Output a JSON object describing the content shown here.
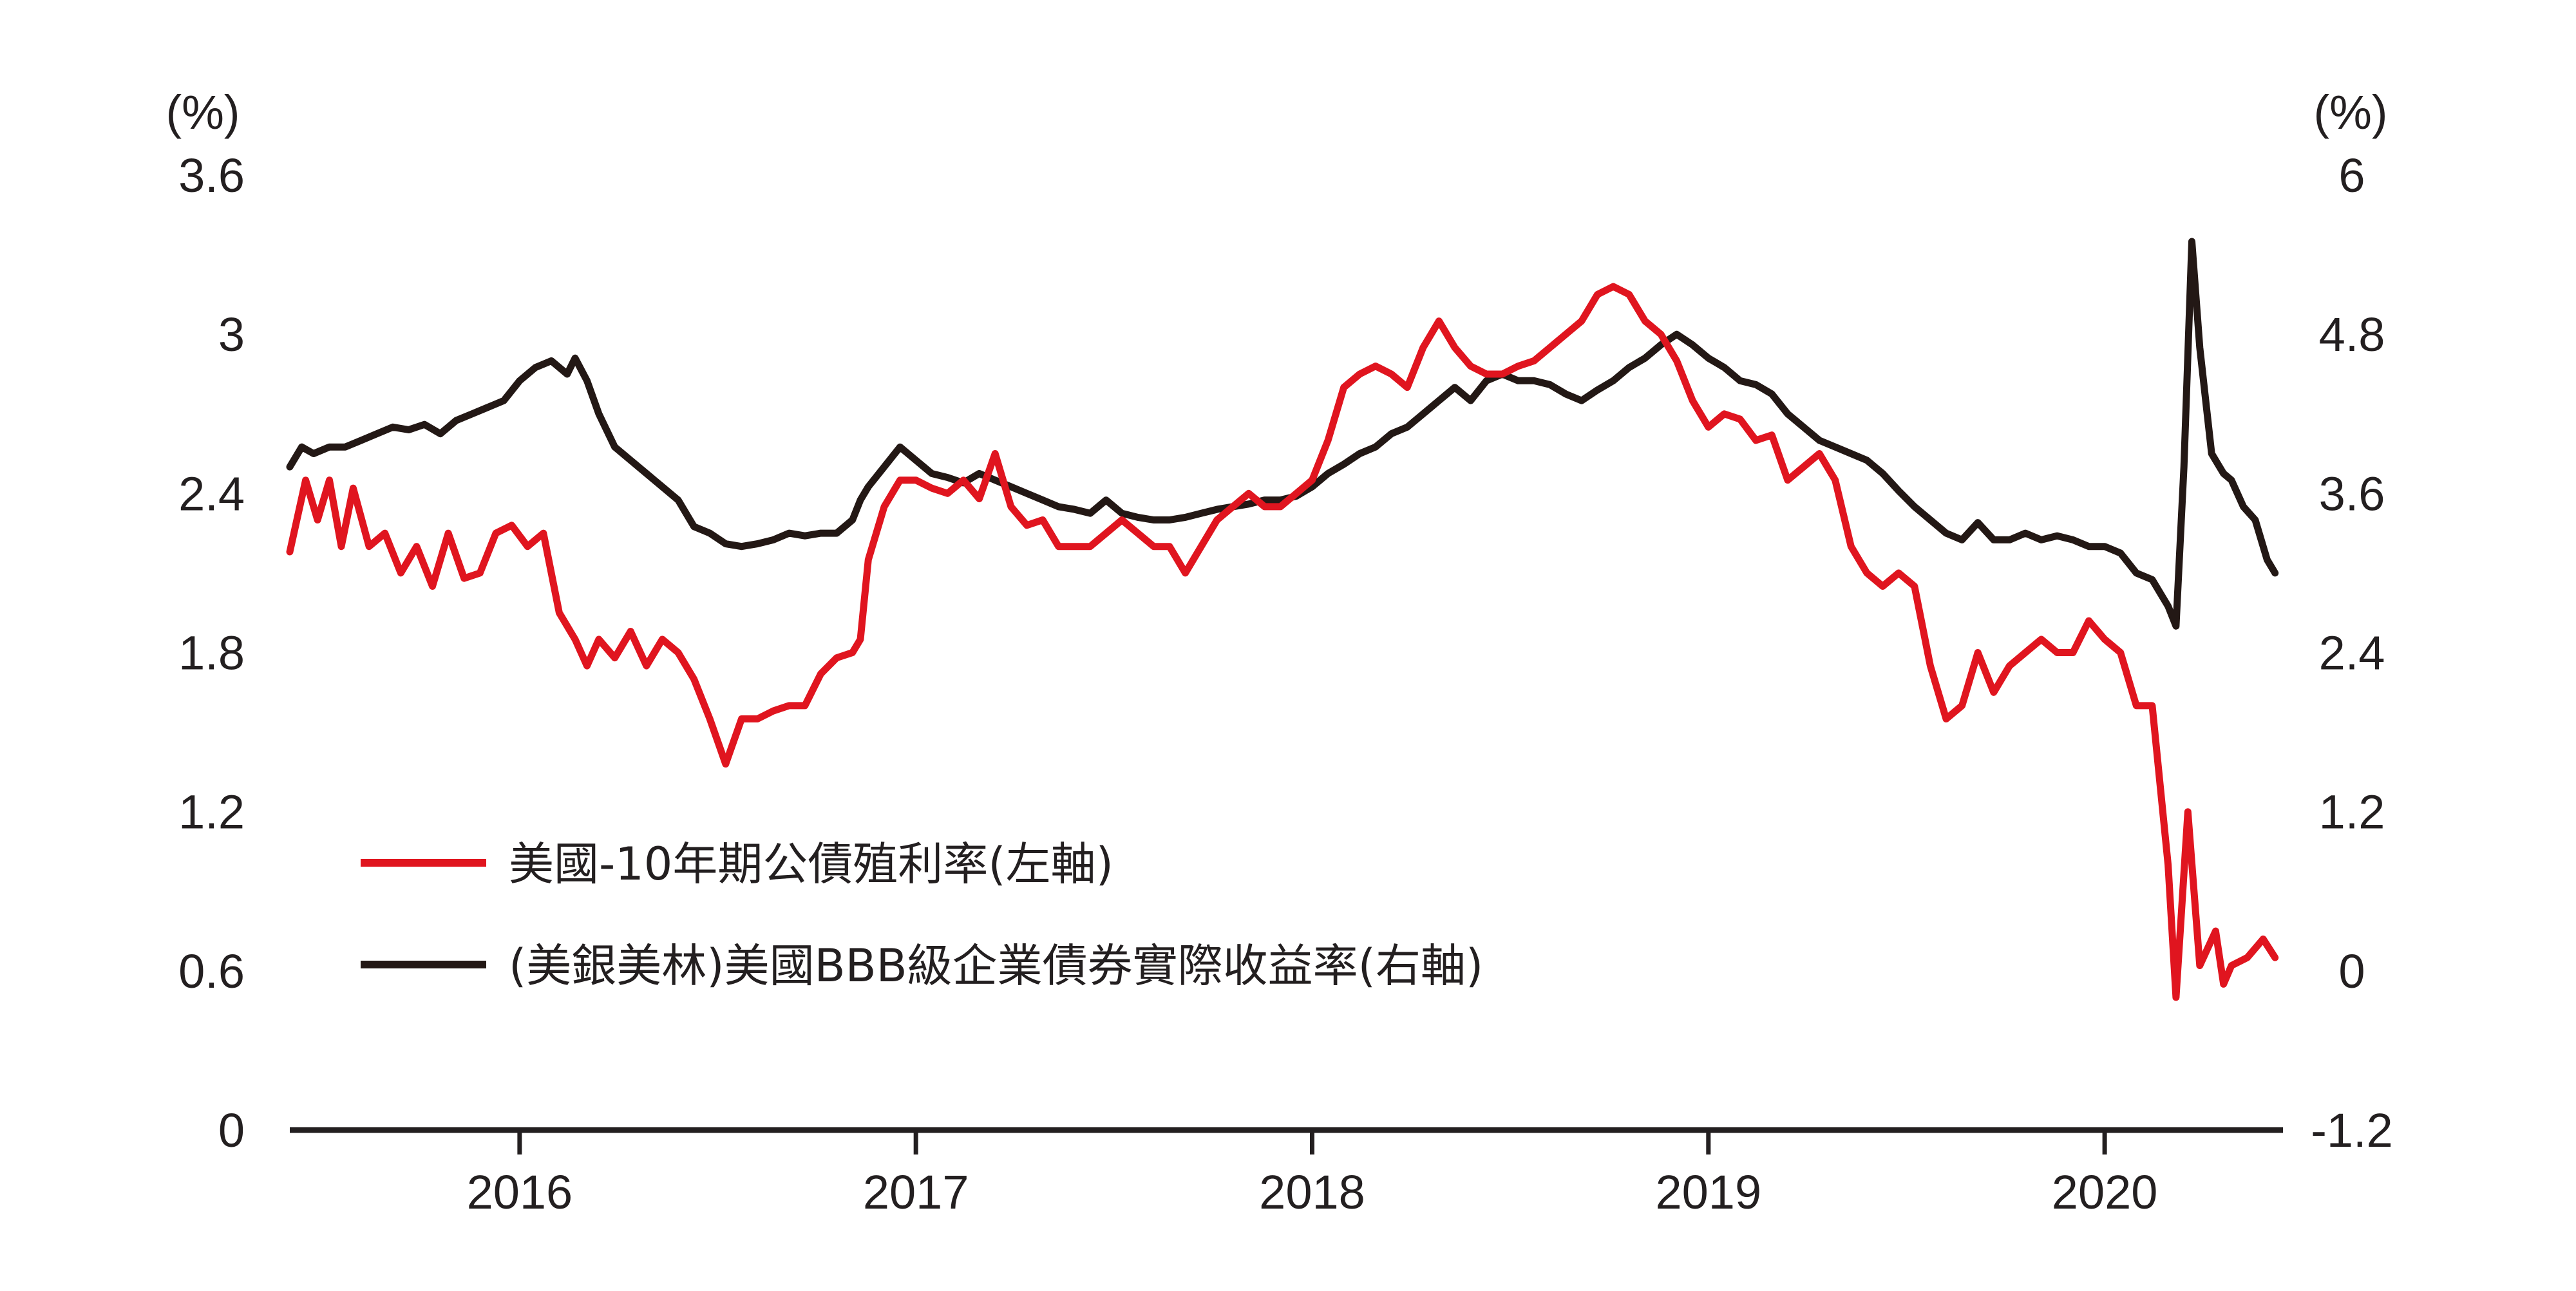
{
  "chart_data": {
    "type": "line",
    "left_axis": {
      "unit_label": "(%)",
      "range": [
        0,
        3.6
      ],
      "ticks": [
        0,
        0.6,
        1.2,
        1.8,
        2.4,
        3,
        3.6
      ],
      "tick_labels": [
        "0",
        "0.6",
        "1.2",
        "1.8",
        "2.4",
        "3",
        "3.6"
      ]
    },
    "right_axis": {
      "unit_label": "(%)",
      "range": [
        -1.2,
        6
      ],
      "ticks": [
        -1.2,
        0,
        1.2,
        2.4,
        3.6,
        4.8,
        6
      ],
      "tick_labels": [
        "-1.2",
        "0",
        "1.2",
        "2.4",
        "3.6",
        "4.8",
        "6"
      ]
    },
    "x_axis": {
      "range": [
        2015.42,
        2020.45
      ],
      "ticks": [
        2016,
        2017,
        2018,
        2019,
        2020
      ],
      "tick_labels": [
        "2016",
        "2017",
        "2018",
        "2019",
        "2020"
      ]
    },
    "grid": false,
    "legend_position": "lower-left",
    "series": [
      {
        "name": "美國-10年期公債殖利率(左軸)",
        "color": "#e0151f",
        "axis": "left",
        "points": [
          [
            2015.42,
            2.18
          ],
          [
            2015.46,
            2.45
          ],
          [
            2015.49,
            2.3
          ],
          [
            2015.52,
            2.45
          ],
          [
            2015.55,
            2.2
          ],
          [
            2015.58,
            2.42
          ],
          [
            2015.62,
            2.2
          ],
          [
            2015.66,
            2.25
          ],
          [
            2015.7,
            2.1
          ],
          [
            2015.74,
            2.2
          ],
          [
            2015.78,
            2.05
          ],
          [
            2015.82,
            2.25
          ],
          [
            2015.86,
            2.08
          ],
          [
            2015.9,
            2.1
          ],
          [
            2015.94,
            2.25
          ],
          [
            2015.98,
            2.28
          ],
          [
            2016.02,
            2.2
          ],
          [
            2016.06,
            2.25
          ],
          [
            2016.1,
            1.95
          ],
          [
            2016.14,
            1.85
          ],
          [
            2016.17,
            1.75
          ],
          [
            2016.2,
            1.85
          ],
          [
            2016.24,
            1.78
          ],
          [
            2016.28,
            1.88
          ],
          [
            2016.32,
            1.75
          ],
          [
            2016.36,
            1.85
          ],
          [
            2016.4,
            1.8
          ],
          [
            2016.44,
            1.7
          ],
          [
            2016.48,
            1.55
          ],
          [
            2016.52,
            1.38
          ],
          [
            2016.56,
            1.55
          ],
          [
            2016.6,
            1.55
          ],
          [
            2016.64,
            1.58
          ],
          [
            2016.68,
            1.6
          ],
          [
            2016.72,
            1.6
          ],
          [
            2016.76,
            1.72
          ],
          [
            2016.8,
            1.78
          ],
          [
            2016.84,
            1.8
          ],
          [
            2016.86,
            1.85
          ],
          [
            2016.88,
            2.15
          ],
          [
            2016.92,
            2.35
          ],
          [
            2016.96,
            2.45
          ],
          [
            2017.0,
            2.45
          ],
          [
            2017.04,
            2.42
          ],
          [
            2017.08,
            2.4
          ],
          [
            2017.12,
            2.45
          ],
          [
            2017.16,
            2.38
          ],
          [
            2017.2,
            2.55
          ],
          [
            2017.24,
            2.35
          ],
          [
            2017.28,
            2.28
          ],
          [
            2017.32,
            2.3
          ],
          [
            2017.36,
            2.2
          ],
          [
            2017.4,
            2.2
          ],
          [
            2017.44,
            2.2
          ],
          [
            2017.48,
            2.25
          ],
          [
            2017.52,
            2.3
          ],
          [
            2017.56,
            2.25
          ],
          [
            2017.6,
            2.2
          ],
          [
            2017.64,
            2.2
          ],
          [
            2017.68,
            2.1
          ],
          [
            2017.72,
            2.2
          ],
          [
            2017.76,
            2.3
          ],
          [
            2017.8,
            2.35
          ],
          [
            2017.84,
            2.4
          ],
          [
            2017.88,
            2.35
          ],
          [
            2017.92,
            2.35
          ],
          [
            2017.96,
            2.4
          ],
          [
            2018.0,
            2.45
          ],
          [
            2018.04,
            2.6
          ],
          [
            2018.08,
            2.8
          ],
          [
            2018.12,
            2.85
          ],
          [
            2018.16,
            2.88
          ],
          [
            2018.2,
            2.85
          ],
          [
            2018.24,
            2.8
          ],
          [
            2018.28,
            2.95
          ],
          [
            2018.32,
            3.05
          ],
          [
            2018.36,
            2.95
          ],
          [
            2018.4,
            2.88
          ],
          [
            2018.44,
            2.85
          ],
          [
            2018.48,
            2.85
          ],
          [
            2018.52,
            2.88
          ],
          [
            2018.56,
            2.9
          ],
          [
            2018.6,
            2.95
          ],
          [
            2018.64,
            3.0
          ],
          [
            2018.68,
            3.05
          ],
          [
            2018.72,
            3.15
          ],
          [
            2018.76,
            3.18
          ],
          [
            2018.8,
            3.15
          ],
          [
            2018.84,
            3.05
          ],
          [
            2018.88,
            3.0
          ],
          [
            2018.92,
            2.9
          ],
          [
            2018.96,
            2.75
          ],
          [
            2019.0,
            2.65
          ],
          [
            2019.04,
            2.7
          ],
          [
            2019.08,
            2.68
          ],
          [
            2019.12,
            2.6
          ],
          [
            2019.16,
            2.62
          ],
          [
            2019.2,
            2.45
          ],
          [
            2019.24,
            2.5
          ],
          [
            2019.28,
            2.55
          ],
          [
            2019.32,
            2.45
          ],
          [
            2019.36,
            2.2
          ],
          [
            2019.4,
            2.1
          ],
          [
            2019.44,
            2.05
          ],
          [
            2019.48,
            2.1
          ],
          [
            2019.52,
            2.05
          ],
          [
            2019.56,
            1.75
          ],
          [
            2019.6,
            1.55
          ],
          [
            2019.64,
            1.6
          ],
          [
            2019.68,
            1.8
          ],
          [
            2019.72,
            1.65
          ],
          [
            2019.76,
            1.75
          ],
          [
            2019.8,
            1.8
          ],
          [
            2019.84,
            1.85
          ],
          [
            2019.88,
            1.8
          ],
          [
            2019.92,
            1.8
          ],
          [
            2019.96,
            1.92
          ],
          [
            2020.0,
            1.85
          ],
          [
            2020.04,
            1.8
          ],
          [
            2020.08,
            1.6
          ],
          [
            2020.12,
            1.6
          ],
          [
            2020.16,
            1.0
          ],
          [
            2020.18,
            0.5
          ],
          [
            2020.21,
            1.2
          ],
          [
            2020.24,
            0.62
          ],
          [
            2020.28,
            0.75
          ],
          [
            2020.3,
            0.55
          ],
          [
            2020.32,
            0.62
          ],
          [
            2020.36,
            0.65
          ],
          [
            2020.4,
            0.72
          ],
          [
            2020.43,
            0.65
          ]
        ]
      },
      {
        "name": "(美銀美林)美國BBB級企業債券實際收益率(右軸)",
        "color": "#231815",
        "axis": "right",
        "points": [
          [
            2015.42,
            3.8
          ],
          [
            2015.45,
            3.95
          ],
          [
            2015.48,
            3.9
          ],
          [
            2015.52,
            3.95
          ],
          [
            2015.56,
            3.95
          ],
          [
            2015.6,
            4.0
          ],
          [
            2015.64,
            4.05
          ],
          [
            2015.68,
            4.1
          ],
          [
            2015.72,
            4.08
          ],
          [
            2015.76,
            4.12
          ],
          [
            2015.8,
            4.05
          ],
          [
            2015.84,
            4.15
          ],
          [
            2015.88,
            4.2
          ],
          [
            2015.92,
            4.25
          ],
          [
            2015.96,
            4.3
          ],
          [
            2016.0,
            4.45
          ],
          [
            2016.04,
            4.55
          ],
          [
            2016.08,
            4.6
          ],
          [
            2016.12,
            4.5
          ],
          [
            2016.14,
            4.62
          ],
          [
            2016.17,
            4.45
          ],
          [
            2016.2,
            4.2
          ],
          [
            2016.24,
            3.95
          ],
          [
            2016.28,
            3.85
          ],
          [
            2016.32,
            3.75
          ],
          [
            2016.36,
            3.65
          ],
          [
            2016.4,
            3.55
          ],
          [
            2016.44,
            3.35
          ],
          [
            2016.48,
            3.3
          ],
          [
            2016.52,
            3.22
          ],
          [
            2016.56,
            3.2
          ],
          [
            2016.6,
            3.22
          ],
          [
            2016.64,
            3.25
          ],
          [
            2016.68,
            3.3
          ],
          [
            2016.72,
            3.28
          ],
          [
            2016.76,
            3.3
          ],
          [
            2016.8,
            3.3
          ],
          [
            2016.84,
            3.4
          ],
          [
            2016.86,
            3.55
          ],
          [
            2016.88,
            3.65
          ],
          [
            2016.92,
            3.8
          ],
          [
            2016.96,
            3.95
          ],
          [
            2017.0,
            3.85
          ],
          [
            2017.04,
            3.75
          ],
          [
            2017.08,
            3.72
          ],
          [
            2017.12,
            3.68
          ],
          [
            2017.16,
            3.75
          ],
          [
            2017.2,
            3.7
          ],
          [
            2017.24,
            3.65
          ],
          [
            2017.28,
            3.6
          ],
          [
            2017.32,
            3.55
          ],
          [
            2017.36,
            3.5
          ],
          [
            2017.4,
            3.48
          ],
          [
            2017.44,
            3.45
          ],
          [
            2017.48,
            3.55
          ],
          [
            2017.52,
            3.45
          ],
          [
            2017.56,
            3.42
          ],
          [
            2017.6,
            3.4
          ],
          [
            2017.64,
            3.4
          ],
          [
            2017.68,
            3.42
          ],
          [
            2017.72,
            3.45
          ],
          [
            2017.76,
            3.48
          ],
          [
            2017.8,
            3.5
          ],
          [
            2017.84,
            3.52
          ],
          [
            2017.88,
            3.55
          ],
          [
            2017.92,
            3.55
          ],
          [
            2017.96,
            3.58
          ],
          [
            2018.0,
            3.65
          ],
          [
            2018.04,
            3.75
          ],
          [
            2018.08,
            3.82
          ],
          [
            2018.12,
            3.9
          ],
          [
            2018.16,
            3.95
          ],
          [
            2018.2,
            4.05
          ],
          [
            2018.24,
            4.1
          ],
          [
            2018.28,
            4.2
          ],
          [
            2018.32,
            4.3
          ],
          [
            2018.36,
            4.4
          ],
          [
            2018.4,
            4.3
          ],
          [
            2018.44,
            4.45
          ],
          [
            2018.48,
            4.5
          ],
          [
            2018.52,
            4.45
          ],
          [
            2018.56,
            4.45
          ],
          [
            2018.6,
            4.42
          ],
          [
            2018.64,
            4.35
          ],
          [
            2018.68,
            4.3
          ],
          [
            2018.72,
            4.38
          ],
          [
            2018.76,
            4.45
          ],
          [
            2018.8,
            4.55
          ],
          [
            2018.84,
            4.62
          ],
          [
            2018.88,
            4.72
          ],
          [
            2018.92,
            4.8
          ],
          [
            2018.96,
            4.72
          ],
          [
            2019.0,
            4.62
          ],
          [
            2019.04,
            4.55
          ],
          [
            2019.08,
            4.45
          ],
          [
            2019.12,
            4.42
          ],
          [
            2019.16,
            4.35
          ],
          [
            2019.2,
            4.2
          ],
          [
            2019.24,
            4.1
          ],
          [
            2019.28,
            4.0
          ],
          [
            2019.32,
            3.95
          ],
          [
            2019.36,
            3.9
          ],
          [
            2019.4,
            3.85
          ],
          [
            2019.44,
            3.75
          ],
          [
            2019.48,
            3.62
          ],
          [
            2019.52,
            3.5
          ],
          [
            2019.56,
            3.4
          ],
          [
            2019.6,
            3.3
          ],
          [
            2019.64,
            3.25
          ],
          [
            2019.68,
            3.38
          ],
          [
            2019.72,
            3.25
          ],
          [
            2019.76,
            3.25
          ],
          [
            2019.8,
            3.3
          ],
          [
            2019.84,
            3.25
          ],
          [
            2019.88,
            3.28
          ],
          [
            2019.92,
            3.25
          ],
          [
            2019.96,
            3.2
          ],
          [
            2020.0,
            3.2
          ],
          [
            2020.04,
            3.15
          ],
          [
            2020.08,
            3.0
          ],
          [
            2020.12,
            2.95
          ],
          [
            2020.16,
            2.75
          ],
          [
            2020.18,
            2.6
          ],
          [
            2020.2,
            3.8
          ],
          [
            2020.22,
            5.5
          ],
          [
            2020.24,
            4.7
          ],
          [
            2020.27,
            3.9
          ],
          [
            2020.3,
            3.75
          ],
          [
            2020.32,
            3.7
          ],
          [
            2020.35,
            3.5
          ],
          [
            2020.38,
            3.4
          ],
          [
            2020.41,
            3.1
          ],
          [
            2020.43,
            3.0
          ]
        ]
      }
    ]
  }
}
